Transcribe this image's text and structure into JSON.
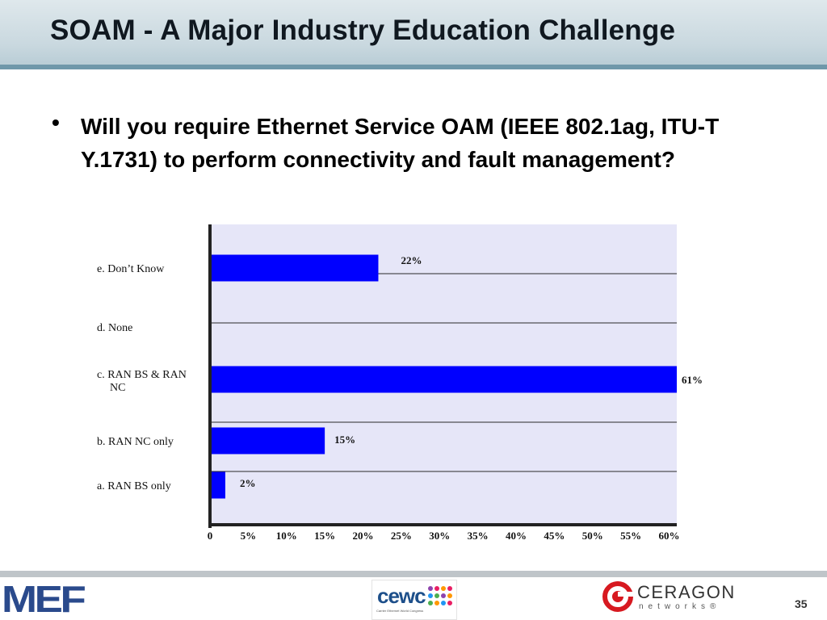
{
  "slide": {
    "title": "SOAM - A Major Industry Education Challenge",
    "bullet": "Will you require Ethernet Service OAM (IEEE 802.1ag, ITU-T Y.1731) to perform connectivity and fault management?",
    "page_number": "35"
  },
  "footer": {
    "mef_logo": "MEF",
    "cewc_logo": "cewc",
    "cewc_tagline": "Carrier Ethernet World Congress",
    "ceragon_logo": "CERAGON",
    "ceragon_sub": "networks®"
  },
  "colors": {
    "bar": "#0000ff",
    "plot_background": "#e6e6f8",
    "header_rule": "#6f98aa"
  },
  "chart_data": {
    "type": "bar",
    "orientation": "horizontal",
    "categories": [
      "e. Don’t Know",
      "d. None",
      "c. RAN BS & RAN NC",
      "b. RAN NC only",
      "a. RAN BS only"
    ],
    "category_lines": [
      [
        "e. Don’t Know"
      ],
      [
        "d. None"
      ],
      [
        "c. RAN BS & RAN",
        "NC"
      ],
      [
        "b. RAN NC only"
      ],
      [
        "a. RAN BS only"
      ]
    ],
    "values": [
      22,
      0,
      61,
      15,
      2
    ],
    "data_labels": [
      "22%",
      "",
      "61%",
      "15%",
      "2%"
    ],
    "xlim": [
      0,
      61
    ],
    "xticks": [
      0,
      5,
      10,
      15,
      20,
      25,
      30,
      35,
      40,
      45,
      50,
      55,
      60
    ],
    "xtick_labels": [
      "0",
      "5%",
      "10%",
      "15%",
      "20%",
      "25%",
      "30%",
      "35%",
      "40%",
      "45%",
      "50%",
      "55%",
      "60%"
    ],
    "grid": "horizontal",
    "legend": "none"
  }
}
